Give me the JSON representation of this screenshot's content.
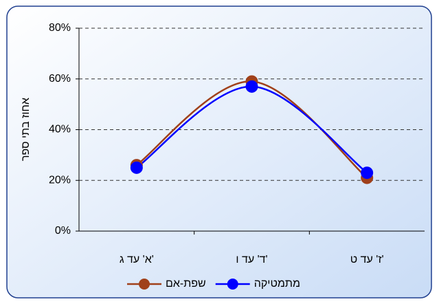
{
  "chart_data": {
    "type": "line",
    "y_label": "אחוז בתי ספר",
    "categories": [
      "א' עד ג'",
      "ד' עד ו'",
      "ז' עד ט'"
    ],
    "series": [
      {
        "name": "שפת-אם",
        "color": "#a0401a",
        "values": [
          26,
          59,
          21
        ]
      },
      {
        "name": "מתמטיקה",
        "color": "#0000ff",
        "values": [
          25,
          57,
          23
        ]
      }
    ],
    "ylim": [
      0,
      80
    ],
    "yticks": [
      {
        "value": 0,
        "label": "0%"
      },
      {
        "value": 20,
        "label": "20%"
      },
      {
        "value": 40,
        "label": "40%"
      },
      {
        "value": 60,
        "label": "60%"
      },
      {
        "value": 80,
        "label": "80%"
      }
    ],
    "grid": true,
    "smooth": true,
    "legend": "bottom"
  }
}
